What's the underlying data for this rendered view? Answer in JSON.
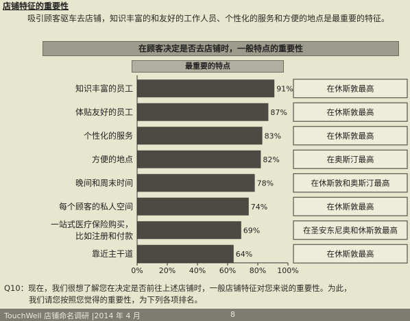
{
  "page": {
    "section_title": "店铺特征的重要性",
    "intro": "吸引顾客驱车去店铺，知识丰富的和友好的工作人员、个性化的服务和方便的地点是最重要的特征。",
    "header": "在顾客决定是否去店铺时，一般特点的重要性",
    "subheader": "最重要的特点",
    "question_line1": "Q10：现在，我们很想了解您在决定是否前往上述店铺时，一般店铺特征对您来说的重要性。为此，",
    "question_line2": "我们请您按照您觉得的重要性，为下列各项排名。",
    "footer_brand": "TouchWell 店铺命名调研 |2014 年 4 月",
    "page_number": "8"
  },
  "colors": {
    "bar": "#4b4a43",
    "box_border": "#56544c",
    "box_fill": "#eeedd9"
  },
  "chart_data": {
    "type": "bar",
    "orientation": "horizontal",
    "categories": [
      "知识丰富的员工",
      "体贴友好的员工",
      "个性化的服务",
      "方便的地点",
      "晚间和周末时间",
      "每个顾客的私人空间",
      "一站式医疗保险购买，比如注册和付款",
      "靠近主干道"
    ],
    "category_lines": [
      [
        "知识丰富的员工"
      ],
      [
        "体贴友好的员工"
      ],
      [
        "个性化的服务"
      ],
      [
        "方便的地点"
      ],
      [
        "晚间和周末时间"
      ],
      [
        "每个顾客的私人空间"
      ],
      [
        "一站式医疗保险购买，",
        "比如注册和付款"
      ],
      [
        "靠近主干道"
      ]
    ],
    "values": [
      91,
      87,
      83,
      82,
      78,
      74,
      69,
      64
    ],
    "value_labels": [
      "91%",
      "87%",
      "83%",
      "82%",
      "78%",
      "74%",
      "69%",
      "64%"
    ],
    "annotations": [
      "在休斯敦最高",
      "在休斯敦最高",
      "在休斯敦最高",
      "在奥斯汀最高",
      "在休斯敦和奥斯汀最高",
      "在休斯敦最高",
      "在圣安东尼奥和休斯敦最高",
      "在休斯敦最高"
    ],
    "xlim": [
      0,
      100
    ],
    "xticks": [
      "0%",
      "20%",
      "40%",
      "60%",
      "80%",
      "100%"
    ],
    "grid": false
  }
}
